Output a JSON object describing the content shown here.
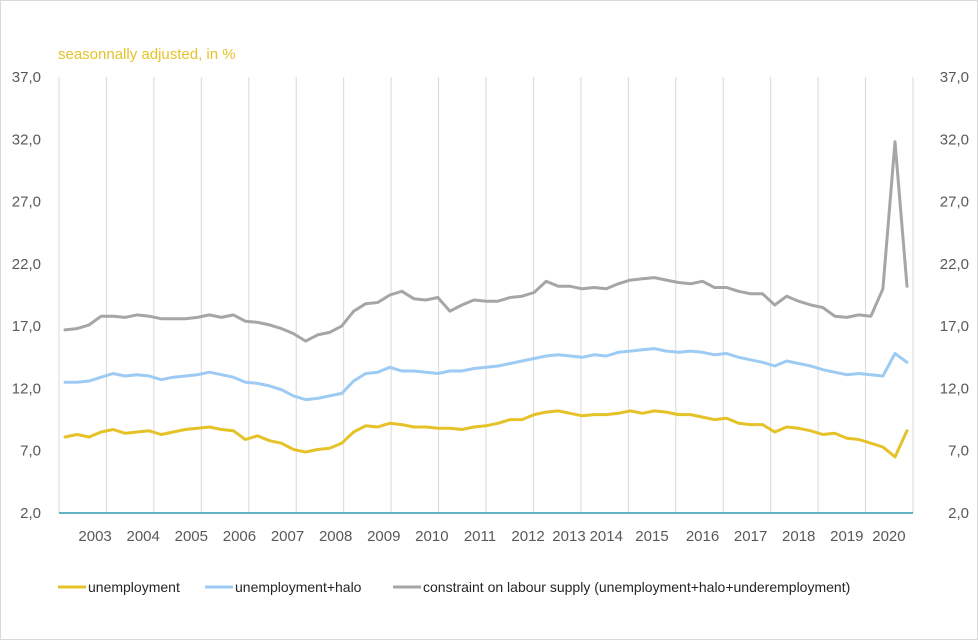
{
  "chart_data": {
    "type": "line",
    "subtitle": "seasonnally adjusted, in %",
    "y_ticks": [
      "2,0",
      "7,0",
      "12,0",
      "17,0",
      "22,0",
      "27,0",
      "32,0",
      "37,0"
    ],
    "ylim": [
      2,
      37
    ],
    "x_tick_labels": [
      {
        "label": "2003",
        "t": 2.5
      },
      {
        "label": "2004",
        "t": 6.5
      },
      {
        "label": "2005",
        "t": 10.5
      },
      {
        "label": "2006",
        "t": 14.5
      },
      {
        "label": "2007",
        "t": 18.5
      },
      {
        "label": "2008",
        "t": 22.5
      },
      {
        "label": "2009",
        "t": 26.5
      },
      {
        "label": "2010",
        "t": 30.5
      },
      {
        "label": "2011",
        "t": 34.5
      },
      {
        "label": "2012",
        "t": 38.5
      },
      {
        "label": "2013",
        "t": 41.9
      },
      {
        "label": "2014",
        "t": 45.0
      },
      {
        "label": "2015",
        "t": 48.8
      },
      {
        "label": "2016",
        "t": 53.0
      },
      {
        "label": "2017",
        "t": 57.0
      },
      {
        "label": "2018",
        "t": 61.0
      },
      {
        "label": "2019",
        "t": 65.0
      },
      {
        "label": "2020",
        "t": 68.5
      }
    ],
    "grid": "vertical",
    "legend_position": "bottom",
    "series": [
      {
        "name": "unemployment",
        "color": "#e6c229",
        "values": [
          8.1,
          8.3,
          8.1,
          8.5,
          8.7,
          8.4,
          8.5,
          8.6,
          8.3,
          8.5,
          8.7,
          8.8,
          8.9,
          8.7,
          8.6,
          7.9,
          8.2,
          7.8,
          7.6,
          7.1,
          6.9,
          7.1,
          7.2,
          7.6,
          8.5,
          9.0,
          8.9,
          9.2,
          9.1,
          8.9,
          8.9,
          8.8,
          8.8,
          8.7,
          8.9,
          9.0,
          9.2,
          9.5,
          9.5,
          9.9,
          10.1,
          10.2,
          10.0,
          9.8,
          9.9,
          9.9,
          10.0,
          10.2,
          10.0,
          10.2,
          10.1,
          9.9,
          9.9,
          9.7,
          9.5,
          9.6,
          9.2,
          9.1,
          9.1,
          8.5,
          8.9,
          8.8,
          8.6,
          8.3,
          8.4,
          8.0,
          7.9,
          7.6,
          7.3,
          6.5,
          8.6
        ]
      },
      {
        "name": "unemployment+halo",
        "color": "#9dcbf3",
        "values": [
          12.5,
          12.5,
          12.6,
          12.9,
          13.2,
          13.0,
          13.1,
          13.0,
          12.7,
          12.9,
          13.0,
          13.1,
          13.3,
          13.1,
          12.9,
          12.5,
          12.4,
          12.2,
          11.9,
          11.4,
          11.1,
          11.2,
          11.4,
          11.6,
          12.6,
          13.2,
          13.3,
          13.7,
          13.4,
          13.4,
          13.3,
          13.2,
          13.4,
          13.4,
          13.6,
          13.7,
          13.8,
          14.0,
          14.2,
          14.4,
          14.6,
          14.7,
          14.6,
          14.5,
          14.7,
          14.6,
          14.9,
          15.0,
          15.1,
          15.2,
          15.0,
          14.9,
          15.0,
          14.9,
          14.7,
          14.8,
          14.5,
          14.3,
          14.1,
          13.8,
          14.2,
          14.0,
          13.8,
          13.5,
          13.3,
          13.1,
          13.2,
          13.1,
          13.0,
          14.8,
          14.1
        ]
      },
      {
        "name": "constraint on labour supply (unemployment+halo+underemployment)",
        "color": "#a6a6a6",
        "values": [
          16.7,
          16.8,
          17.1,
          17.8,
          17.8,
          17.7,
          17.9,
          17.8,
          17.6,
          17.6,
          17.6,
          17.7,
          17.9,
          17.7,
          17.9,
          17.4,
          17.3,
          17.1,
          16.8,
          16.4,
          15.8,
          16.3,
          16.5,
          17.0,
          18.2,
          18.8,
          18.9,
          19.5,
          19.8,
          19.2,
          19.1,
          19.3,
          18.2,
          18.7,
          19.1,
          19.0,
          19.0,
          19.3,
          19.4,
          19.7,
          20.6,
          20.2,
          20.2,
          20.0,
          20.1,
          20.0,
          20.4,
          20.7,
          20.8,
          20.9,
          20.7,
          20.5,
          20.4,
          20.6,
          20.1,
          20.1,
          19.8,
          19.6,
          19.6,
          18.7,
          19.4,
          19.0,
          18.7,
          18.5,
          17.8,
          17.7,
          17.9,
          17.8,
          20.0,
          31.8,
          20.2
        ]
      }
    ]
  }
}
